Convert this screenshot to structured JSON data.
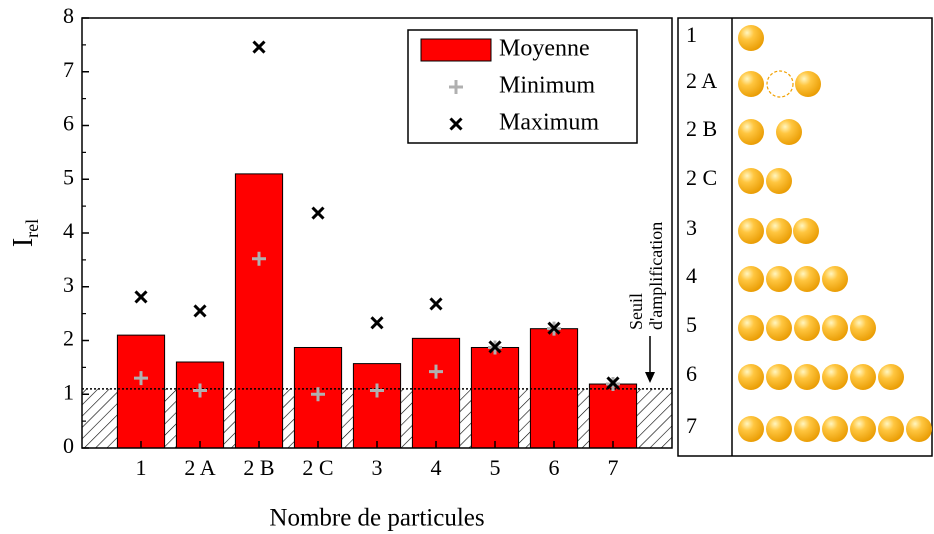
{
  "chart_data": {
    "type": "bar",
    "categories": [
      "1",
      "2 A",
      "2 B",
      "2 C",
      "3",
      "4",
      "5",
      "6",
      "7"
    ],
    "series": [
      {
        "name": "Moyenne",
        "color": "#ff0000",
        "values": [
          2.1,
          1.6,
          5.1,
          1.87,
          1.57,
          2.04,
          1.87,
          2.22,
          1.19
        ]
      },
      {
        "name": "Minimum",
        "color": "#b0b0b0",
        "marker": "plus",
        "values": [
          1.3,
          1.07,
          3.52,
          1.0,
          1.07,
          1.42,
          1.87,
          2.22,
          1.19
        ]
      },
      {
        "name": "Maximum",
        "color": "#000000",
        "marker": "cross",
        "values": [
          2.81,
          2.55,
          7.46,
          4.37,
          2.33,
          2.68,
          1.88,
          2.23,
          1.21
        ]
      }
    ],
    "ylim": [
      0,
      8
    ],
    "yticks": [
      0,
      1,
      2,
      3,
      4,
      5,
      6,
      7,
      8
    ],
    "xlabel": "Nombre de particules",
    "ylabel": "I",
    "ylabel_sub": "rel",
    "threshold": 1.1,
    "annotation": [
      "Seuil",
      "d'amplification"
    ]
  },
  "table": {
    "rows": [
      "1",
      "2 A",
      "2 B",
      "2 C",
      "3",
      "4",
      "5",
      "6",
      "7"
    ]
  }
}
